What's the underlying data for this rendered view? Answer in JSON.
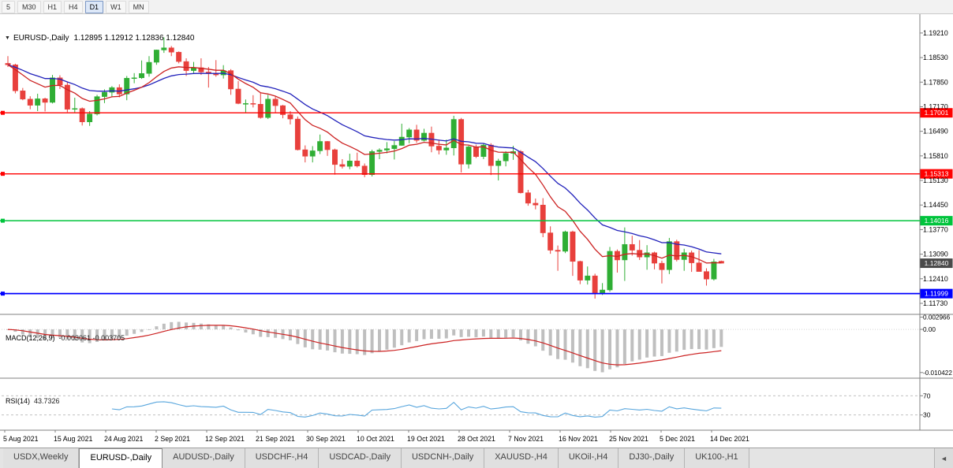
{
  "toolbar": {
    "timeframes": [
      {
        "label": "5",
        "active": false
      },
      {
        "label": "M30",
        "active": false
      },
      {
        "label": "H1",
        "active": false
      },
      {
        "label": "H4",
        "active": false
      },
      {
        "label": "D1",
        "active": true
      },
      {
        "label": "W1",
        "active": false
      },
      {
        "label": "MN",
        "active": false
      }
    ]
  },
  "header": {
    "symbol": "EURUSD-,Daily",
    "ohlc": "1.12895 1.12912 1.12836 1.12840"
  },
  "icons": {
    "dropdown": "▼",
    "tab_scroll_left": "◄"
  },
  "indicators": {
    "macd": {
      "name_label": "MACD(12,26,9)",
      "values_label": "-0.003061 -0.003705",
      "axis_ticks": [
        "0.002966",
        "0.00",
        "-0.010422"
      ]
    },
    "rsi": {
      "name_label": "RSI(14)",
      "values_label": "43.7326",
      "levels": [
        "70",
        "30"
      ]
    }
  },
  "tabs": {
    "items": [
      {
        "label": "USDX,Weekly",
        "active": false
      },
      {
        "label": "EURUSD-,Daily",
        "active": true
      },
      {
        "label": "AUDUSD-,Daily",
        "active": false
      },
      {
        "label": "USDCHF-,H4",
        "active": false
      },
      {
        "label": "USDCAD-,Daily",
        "active": false
      },
      {
        "label": "USDCNH-,Daily",
        "active": false
      },
      {
        "label": "XAUUSD-,H4",
        "active": false
      },
      {
        "label": "UKOil-,H4",
        "active": false
      },
      {
        "label": "DJ30-,Daily",
        "active": false
      },
      {
        "label": "UK100-,H1",
        "active": false
      }
    ]
  },
  "chart_data": {
    "type": "candlestick",
    "symbol": "EURUSD",
    "timeframe": "Daily",
    "ylim": [
      1.1149,
      1.196
    ],
    "y_axis_ticks": [
      "1.19210",
      "1.18530",
      "1.17850",
      "1.17170",
      "1.16490",
      "1.15810",
      "1.15130",
      "1.14450",
      "1.13770",
      "1.13090",
      "1.12410",
      "1.11730"
    ],
    "x_axis_labels": [
      "5 Aug 2021",
      "15 Aug 2021",
      "24 Aug 2021",
      "2 Sep 2021",
      "12 Sep 2021",
      "21 Sep 2021",
      "30 Sep 2021",
      "10 Oct 2021",
      "19 Oct 2021",
      "28 Oct 2021",
      "7 Nov 2021",
      "16 Nov 2021",
      "25 Nov 2021",
      "5 Dec 2021",
      "14 Dec 2021"
    ],
    "hlines": [
      {
        "price": 1.17001,
        "label": "1.17001",
        "color": "#ff0000"
      },
      {
        "price": 1.15313,
        "label": "1.15313",
        "color": "#ff0000"
      },
      {
        "price": 1.14016,
        "label": "1.14016",
        "color": "#00c43c"
      },
      {
        "price": 1.11999,
        "label": "1.11999",
        "color": "#0000ff"
      }
    ],
    "current_price": {
      "value": 1.1284,
      "label": "1.12840"
    },
    "overlays": [
      {
        "name": "ma-fast",
        "type": "ema",
        "period": 10,
        "color": "#cc2222"
      },
      {
        "name": "ma-slow",
        "type": "ema",
        "period": 20,
        "color": "#2222bb"
      }
    ],
    "colors": {
      "up": "#2fae34",
      "down": "#e8403c",
      "macd_hist": "#bfbfbf",
      "macd_signal": "#cc2222",
      "rsi": "#58a6dd",
      "axis": "#808080",
      "badge_current": "#4a4a4a"
    },
    "dates": [
      "2021.08.05",
      "2021.08.06",
      "2021.08.09",
      "2021.08.10",
      "2021.08.11",
      "2021.08.12",
      "2021.08.13",
      "2021.08.16",
      "2021.08.17",
      "2021.08.18",
      "2021.08.19",
      "2021.08.20",
      "2021.08.23",
      "2021.08.24",
      "2021.08.25",
      "2021.08.26",
      "2021.08.27",
      "2021.08.30",
      "2021.08.31",
      "2021.09.01",
      "2021.09.02",
      "2021.09.03",
      "2021.09.06",
      "2021.09.07",
      "2021.09.08",
      "2021.09.09",
      "2021.09.10",
      "2021.09.13",
      "2021.09.14",
      "2021.09.15",
      "2021.09.16",
      "2021.09.17",
      "2021.09.20",
      "2021.09.21",
      "2021.09.22",
      "2021.09.23",
      "2021.09.24",
      "2021.09.27",
      "2021.09.28",
      "2021.09.29",
      "2021.09.30",
      "2021.10.01",
      "2021.10.04",
      "2021.10.05",
      "2021.10.06",
      "2021.10.07",
      "2021.10.08",
      "2021.10.11",
      "2021.10.12",
      "2021.10.13",
      "2021.10.14",
      "2021.10.15",
      "2021.10.18",
      "2021.10.19",
      "2021.10.20",
      "2021.10.21",
      "2021.10.22",
      "2021.10.25",
      "2021.10.26",
      "2021.10.27",
      "2021.10.28",
      "2021.10.29",
      "2021.11.01",
      "2021.11.02",
      "2021.11.03",
      "2021.11.04",
      "2021.11.05",
      "2021.11.08",
      "2021.11.09",
      "2021.11.10",
      "2021.11.11",
      "2021.11.12",
      "2021.11.15",
      "2021.11.16",
      "2021.11.17",
      "2021.11.18",
      "2021.11.19",
      "2021.11.22",
      "2021.11.23",
      "2021.11.24",
      "2021.11.25",
      "2021.11.26",
      "2021.11.29",
      "2021.11.30",
      "2021.12.01",
      "2021.12.02",
      "2021.12.03",
      "2021.12.06",
      "2021.12.07",
      "2021.12.08",
      "2021.12.09",
      "2021.12.10",
      "2021.12.13",
      "2021.12.14",
      "2021.12.15",
      "2021.12.16",
      "2021.12.17"
    ],
    "ohlc": [
      [
        1.1837,
        1.1857,
        1.1827,
        1.1833
      ],
      [
        1.1833,
        1.1836,
        1.1754,
        1.1761
      ],
      [
        1.1761,
        1.1769,
        1.1735,
        1.1738
      ],
      [
        1.1738,
        1.1746,
        1.171,
        1.1721
      ],
      [
        1.1721,
        1.1753,
        1.1705,
        1.1739
      ],
      [
        1.1739,
        1.1742,
        1.1704,
        1.1729
      ],
      [
        1.1729,
        1.1805,
        1.1726,
        1.1797
      ],
      [
        1.1797,
        1.1804,
        1.1766,
        1.1777
      ],
      [
        1.1777,
        1.1785,
        1.1702,
        1.171
      ],
      [
        1.171,
        1.1742,
        1.17,
        1.1712
      ],
      [
        1.1712,
        1.1715,
        1.1665,
        1.1675
      ],
      [
        1.1675,
        1.1705,
        1.1664,
        1.1697
      ],
      [
        1.1697,
        1.175,
        1.1693,
        1.1745
      ],
      [
        1.1745,
        1.1765,
        1.1727,
        1.1757
      ],
      [
        1.1757,
        1.1774,
        1.1745,
        1.177
      ],
      [
        1.177,
        1.1779,
        1.1743,
        1.1752
      ],
      [
        1.1752,
        1.1802,
        1.1735,
        1.1796
      ],
      [
        1.1796,
        1.181,
        1.1782,
        1.1797
      ],
      [
        1.1797,
        1.1845,
        1.1794,
        1.1809
      ],
      [
        1.1809,
        1.1857,
        1.18,
        1.184
      ],
      [
        1.184,
        1.1875,
        1.1833,
        1.1874
      ],
      [
        1.1874,
        1.1909,
        1.1866,
        1.188
      ],
      [
        1.188,
        1.1885,
        1.1857,
        1.1868
      ],
      [
        1.1868,
        1.187,
        1.1837,
        1.1842
      ],
      [
        1.1842,
        1.1851,
        1.1802,
        1.1817
      ],
      [
        1.1817,
        1.1841,
        1.181,
        1.1825
      ],
      [
        1.1825,
        1.1851,
        1.1805,
        1.1813
      ],
      [
        1.1813,
        1.1827,
        1.177,
        1.181
      ],
      [
        1.181,
        1.1846,
        1.18,
        1.1805
      ],
      [
        1.1805,
        1.1832,
        1.1795,
        1.1817
      ],
      [
        1.1817,
        1.1821,
        1.175,
        1.1766
      ],
      [
        1.1766,
        1.1788,
        1.1724,
        1.1726
      ],
      [
        1.1726,
        1.1737,
        1.17,
        1.1726
      ],
      [
        1.1726,
        1.1749,
        1.1715,
        1.1724
      ],
      [
        1.1724,
        1.1756,
        1.1684,
        1.1687
      ],
      [
        1.1687,
        1.175,
        1.1683,
        1.1738
      ],
      [
        1.1738,
        1.1745,
        1.1701,
        1.172
      ],
      [
        1.172,
        1.1722,
        1.1685,
        1.1695
      ],
      [
        1.1695,
        1.1705,
        1.1668,
        1.1683
      ],
      [
        1.1683,
        1.169,
        1.1596,
        1.1598
      ],
      [
        1.1598,
        1.161,
        1.1563,
        1.158
      ],
      [
        1.158,
        1.1608,
        1.1563,
        1.1595
      ],
      [
        1.1595,
        1.164,
        1.1586,
        1.1621
      ],
      [
        1.1621,
        1.1622,
        1.1581,
        1.1598
      ],
      [
        1.1598,
        1.1601,
        1.1529,
        1.1557
      ],
      [
        1.1557,
        1.1572,
        1.1546,
        1.1552
      ],
      [
        1.1552,
        1.1587,
        1.1544,
        1.1567
      ],
      [
        1.1567,
        1.159,
        1.1549,
        1.1553
      ],
      [
        1.1553,
        1.156,
        1.1522,
        1.1529
      ],
      [
        1.1529,
        1.1598,
        1.1524,
        1.1593
      ],
      [
        1.1593,
        1.1602,
        1.1572,
        1.1597
      ],
      [
        1.1597,
        1.1619,
        1.1588,
        1.1601
      ],
      [
        1.1601,
        1.1622,
        1.1571,
        1.161
      ],
      [
        1.161,
        1.167,
        1.1609,
        1.1633
      ],
      [
        1.1633,
        1.1658,
        1.1616,
        1.1653
      ],
      [
        1.1653,
        1.1667,
        1.1617,
        1.1624
      ],
      [
        1.1624,
        1.1656,
        1.1621,
        1.1644
      ],
      [
        1.1644,
        1.1662,
        1.1591,
        1.1608
      ],
      [
        1.1608,
        1.1626,
        1.1585,
        1.1597
      ],
      [
        1.1597,
        1.1626,
        1.1584,
        1.1603
      ],
      [
        1.1603,
        1.1692,
        1.1582,
        1.1682
      ],
      [
        1.1682,
        1.1686,
        1.1535,
        1.1558
      ],
      [
        1.1558,
        1.1609,
        1.1546,
        1.1606
      ],
      [
        1.1606,
        1.1612,
        1.1575,
        1.1579
      ],
      [
        1.1579,
        1.1616,
        1.1572,
        1.1611
      ],
      [
        1.1611,
        1.1616,
        1.1528,
        1.1554
      ],
      [
        1.1554,
        1.1573,
        1.1513,
        1.1567
      ],
      [
        1.1567,
        1.1594,
        1.1552,
        1.1588
      ],
      [
        1.1588,
        1.1609,
        1.157,
        1.1593
      ],
      [
        1.1593,
        1.1597,
        1.1477,
        1.1479
      ],
      [
        1.1479,
        1.1487,
        1.1443,
        1.145
      ],
      [
        1.145,
        1.1463,
        1.1433,
        1.1445
      ],
      [
        1.1445,
        1.1464,
        1.1356,
        1.1368
      ],
      [
        1.1368,
        1.1386,
        1.131,
        1.132
      ],
      [
        1.132,
        1.1333,
        1.1263,
        1.1317
      ],
      [
        1.1317,
        1.1374,
        1.1312,
        1.1371
      ],
      [
        1.1371,
        1.1374,
        1.1249,
        1.1289
      ],
      [
        1.1289,
        1.1291,
        1.1226,
        1.1237
      ],
      [
        1.1237,
        1.1275,
        1.1225,
        1.1249
      ],
      [
        1.1249,
        1.1255,
        1.1186,
        1.12
      ],
      [
        1.12,
        1.1229,
        1.1196,
        1.121
      ],
      [
        1.121,
        1.1329,
        1.1205,
        1.1317
      ],
      [
        1.1317,
        1.1322,
        1.1258,
        1.1293
      ],
      [
        1.1293,
        1.1383,
        1.1235,
        1.1336
      ],
      [
        1.1336,
        1.136,
        1.1305,
        1.132
      ],
      [
        1.132,
        1.1348,
        1.1293,
        1.1301
      ],
      [
        1.1301,
        1.1334,
        1.1266,
        1.1313
      ],
      [
        1.1313,
        1.1316,
        1.1267,
        1.1284
      ],
      [
        1.1284,
        1.1291,
        1.1228,
        1.1266
      ],
      [
        1.1266,
        1.1354,
        1.1254,
        1.1344
      ],
      [
        1.1344,
        1.1349,
        1.1289,
        1.1294
      ],
      [
        1.1294,
        1.1324,
        1.1263,
        1.1313
      ],
      [
        1.1313,
        1.1319,
        1.126,
        1.1285
      ],
      [
        1.1285,
        1.132,
        1.1261,
        1.1261
      ],
      [
        1.1261,
        1.127,
        1.1222,
        1.124
      ],
      [
        1.124,
        1.1296,
        1.1236,
        1.1288
      ],
      [
        1.12895,
        1.12912,
        1.12836,
        1.1284
      ]
    ]
  }
}
